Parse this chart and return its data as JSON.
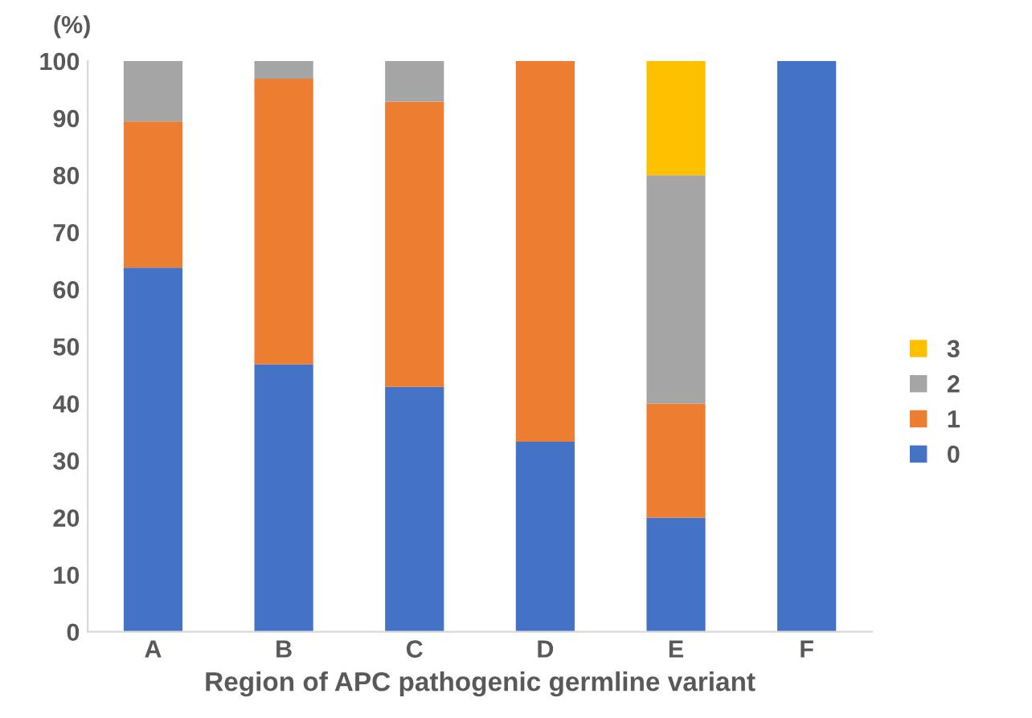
{
  "chart_data": {
    "type": "bar",
    "stacked": true,
    "ylabel": "(%)",
    "xlabel": "Region of APC pathogenic germline variant",
    "categories": [
      "A",
      "B",
      "C",
      "D",
      "E",
      "F"
    ],
    "series": [
      {
        "name": "0",
        "color": "#4472c4",
        "values": [
          63.8,
          46.9,
          42.9,
          33.3,
          20,
          100
        ]
      },
      {
        "name": "1",
        "color": "#ed7d31",
        "values": [
          25.6,
          50,
          50,
          66.7,
          20,
          null
        ]
      },
      {
        "name": "2",
        "color": "#a5a5a5",
        "values": [
          10.6,
          3.1,
          7.1,
          null,
          40,
          null
        ]
      },
      {
        "name": "3",
        "color": "#ffc000",
        "values": [
          null,
          null,
          null,
          null,
          20,
          null
        ]
      }
    ],
    "ylim": [
      0,
      100
    ],
    "yticks": [
      0,
      10,
      20,
      30,
      40,
      50,
      60,
      70,
      80,
      90,
      100
    ],
    "grid": false,
    "legend": "right"
  }
}
